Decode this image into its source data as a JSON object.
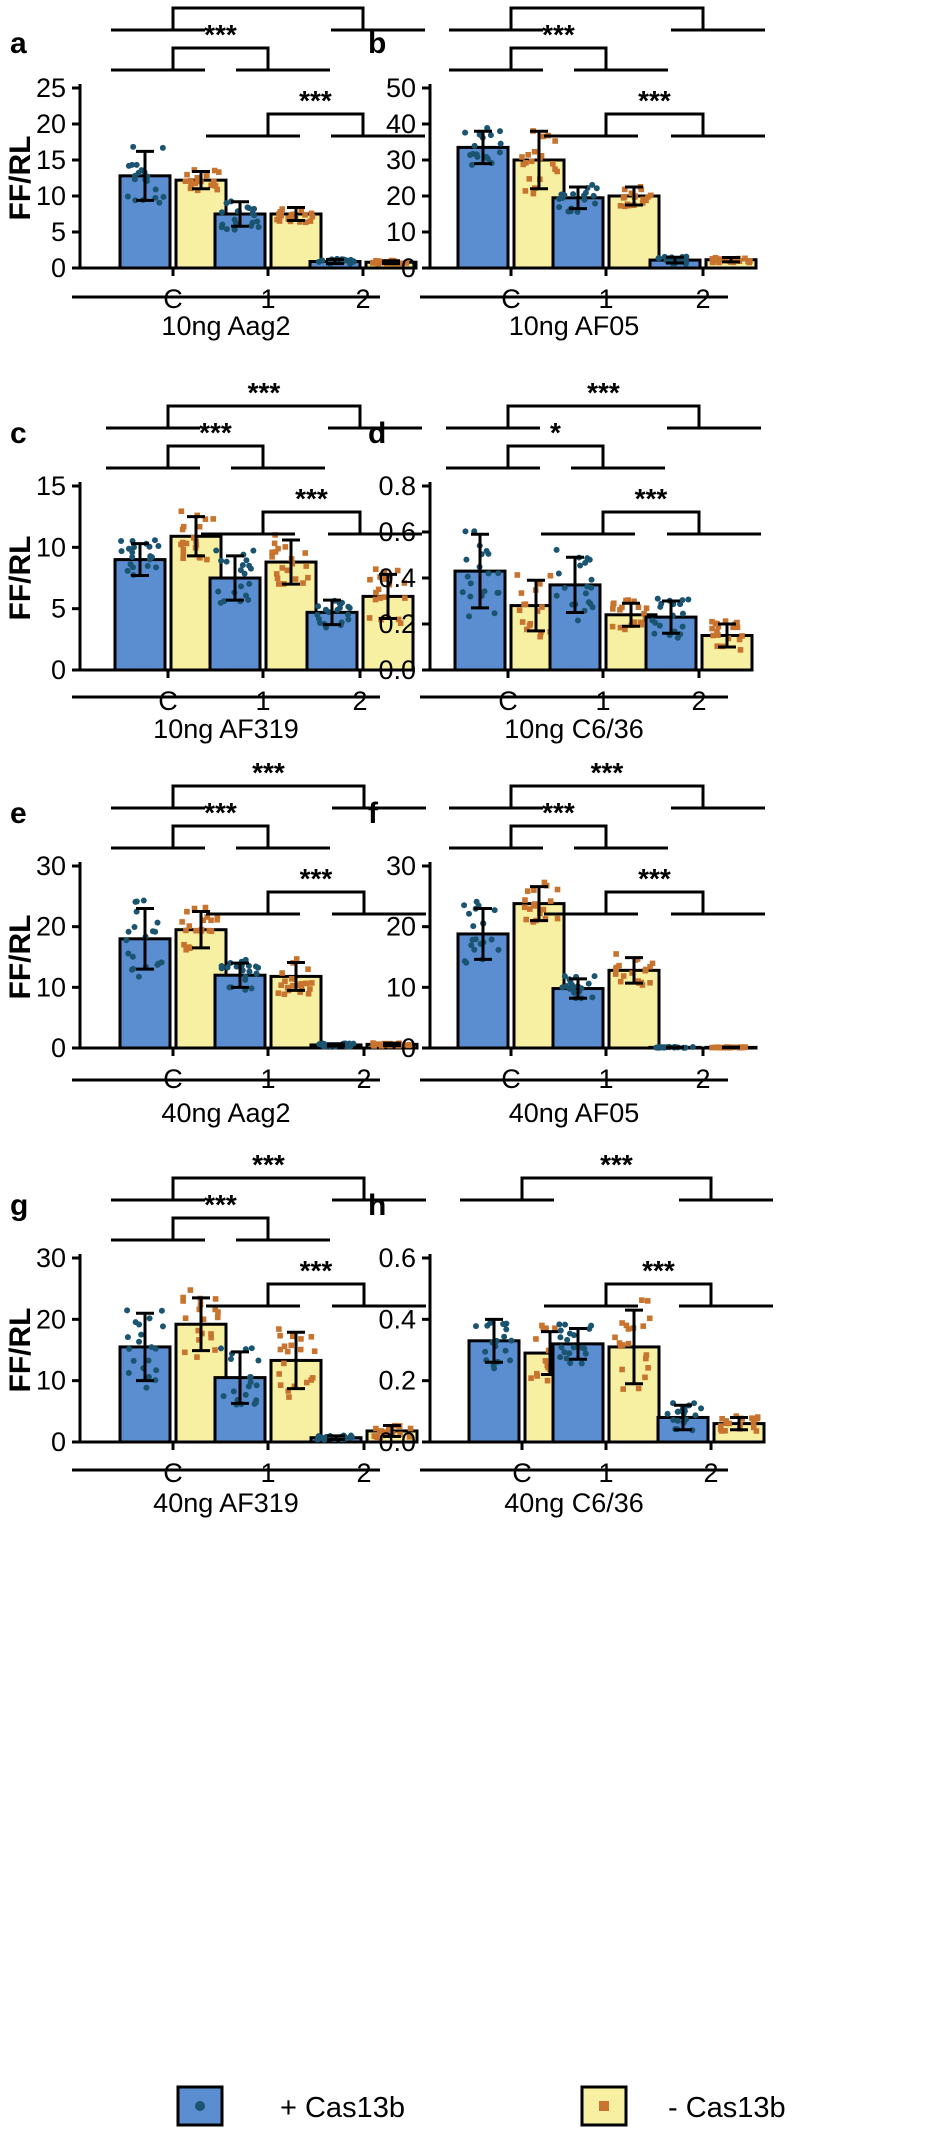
{
  "legend": {
    "cas_plus": "+ Cas13b",
    "cas_minus": "- Cas13b"
  },
  "colors": {
    "cas_plus_bar": "#5b8ed0",
    "cas_minus_bar": "#f7f0a3",
    "cas_plus_dot": "#1a5470",
    "cas_minus_dot": "#c8742e"
  },
  "chart_data": [
    {
      "panel": "a",
      "type": "bar",
      "condition": "10ng Aag2",
      "ylabel": "FF/RL",
      "ylim": [
        0,
        25
      ],
      "yticks": [
        "0",
        "5",
        "10",
        "15",
        "20",
        "25"
      ],
      "categories": [
        "C",
        "1",
        "2"
      ],
      "series": [
        {
          "name": "+ Cas13b",
          "values": [
            12.8,
            7.5,
            0.9
          ],
          "errors": [
            3.4,
            1.7,
            0.3
          ]
        },
        {
          "name": "- Cas13b",
          "values": [
            12.2,
            7.5,
            0.8
          ],
          "errors": [
            1.2,
            0.9,
            0.2
          ]
        }
      ],
      "significance": [
        {
          "label": "***",
          "from": "C",
          "to": "2",
          "level": 1
        },
        {
          "label": "***",
          "from": "C",
          "to": "1",
          "level": 2
        },
        {
          "label": "***",
          "from": "1",
          "to": "2",
          "level": 3
        }
      ]
    },
    {
      "panel": "b",
      "type": "bar",
      "condition": "10ng AF05",
      "ylabel": "",
      "ylim": [
        0,
        50
      ],
      "yticks": [
        "0",
        "10",
        "20",
        "30",
        "40",
        "50"
      ],
      "categories": [
        "C",
        "1",
        "2"
      ],
      "series": [
        {
          "name": "+ Cas13b",
          "values": [
            33.5,
            19.5,
            2.2
          ],
          "errors": [
            4.5,
            3.0,
            0.8
          ]
        },
        {
          "name": "- Cas13b",
          "values": [
            30.0,
            20.0,
            2.3
          ],
          "errors": [
            8.0,
            2.5,
            0.6
          ]
        }
      ],
      "significance": [
        {
          "label": "***",
          "from": "C",
          "to": "2",
          "level": 1
        },
        {
          "label": "***",
          "from": "C",
          "to": "1",
          "level": 2
        },
        {
          "label": "***",
          "from": "1",
          "to": "2",
          "level": 3
        }
      ]
    },
    {
      "panel": "c",
      "type": "bar",
      "condition": "10ng AF319",
      "ylabel": "FF/RL",
      "ylim": [
        0,
        15
      ],
      "yticks": [
        "0",
        "5",
        "10",
        "15"
      ],
      "categories": [
        "C",
        "1",
        "2"
      ],
      "series": [
        {
          "name": "+ Cas13b",
          "values": [
            9.0,
            7.5,
            4.7
          ],
          "errors": [
            1.3,
            1.8,
            1.0
          ]
        },
        {
          "name": "- Cas13b",
          "values": [
            10.9,
            8.8,
            6.0
          ],
          "errors": [
            1.6,
            1.8,
            1.8
          ]
        }
      ],
      "significance": [
        {
          "label": "***",
          "from": "C",
          "to": "2",
          "level": 1
        },
        {
          "label": "***",
          "from": "C",
          "to": "1",
          "level": 2
        },
        {
          "label": "***",
          "from": "1",
          "to": "2",
          "level": 3
        }
      ]
    },
    {
      "panel": "d",
      "type": "bar",
      "condition": "10ng C6/36",
      "ylabel": "",
      "ylim": [
        0,
        0.8
      ],
      "yticks": [
        "0.0",
        "0.2",
        "0.4",
        "0.6",
        "0.8"
      ],
      "categories": [
        "C",
        "1",
        "2"
      ],
      "series": [
        {
          "name": "+ Cas13b",
          "values": [
            0.43,
            0.37,
            0.23
          ],
          "errors": [
            0.16,
            0.12,
            0.07
          ]
        },
        {
          "name": "- Cas13b",
          "values": [
            0.28,
            0.24,
            0.15
          ],
          "errors": [
            0.11,
            0.05,
            0.05
          ]
        }
      ],
      "significance": [
        {
          "label": "***",
          "from": "C",
          "to": "2",
          "level": 1
        },
        {
          "label": "*",
          "from": "C",
          "to": "1",
          "level": 2
        },
        {
          "label": "***",
          "from": "1",
          "to": "2",
          "level": 3
        }
      ]
    },
    {
      "panel": "e",
      "type": "bar",
      "condition": "40ng Aag2",
      "ylabel": "FF/RL",
      "ylim": [
        0,
        30
      ],
      "yticks": [
        "0",
        "10",
        "20",
        "30"
      ],
      "categories": [
        "C",
        "1",
        "2"
      ],
      "series": [
        {
          "name": "+ Cas13b",
          "values": [
            18.0,
            12.0,
            0.5
          ],
          "errors": [
            5.0,
            2.0,
            0.2
          ]
        },
        {
          "name": "- Cas13b",
          "values": [
            19.5,
            11.8,
            0.6
          ],
          "errors": [
            3.0,
            2.3,
            0.2
          ]
        }
      ],
      "significance": [
        {
          "label": "***",
          "from": "C",
          "to": "2",
          "level": 1
        },
        {
          "label": "***",
          "from": "C",
          "to": "1",
          "level": 2
        },
        {
          "label": "***",
          "from": "1",
          "to": "2",
          "level": 3
        }
      ]
    },
    {
      "panel": "f",
      "type": "bar",
      "condition": "40ng AF05",
      "ylabel": "",
      "ylim": [
        0,
        30
      ],
      "yticks": [
        "0",
        "10",
        "20",
        "30"
      ],
      "categories": [
        "C",
        "1",
        "2"
      ],
      "series": [
        {
          "name": "+ Cas13b",
          "values": [
            18.8,
            9.8,
            0.1
          ],
          "errors": [
            4.2,
            1.6,
            0.05
          ]
        },
        {
          "name": "- Cas13b",
          "values": [
            23.8,
            12.8,
            0.1
          ],
          "errors": [
            2.8,
            2.1,
            0.05
          ]
        }
      ],
      "significance": [
        {
          "label": "***",
          "from": "C",
          "to": "2",
          "level": 1
        },
        {
          "label": "***",
          "from": "C",
          "to": "1",
          "level": 2
        },
        {
          "label": "***",
          "from": "1",
          "to": "2",
          "level": 3
        }
      ]
    },
    {
      "panel": "g",
      "type": "bar",
      "condition": "40ng AF319",
      "ylabel": "FF/RL",
      "ylim": [
        0,
        30
      ],
      "yticks": [
        "0",
        "10",
        "20",
        "30"
      ],
      "categories": [
        "C",
        "1",
        "2"
      ],
      "series": [
        {
          "name": "+ Cas13b",
          "values": [
            15.5,
            10.5,
            0.7
          ],
          "errors": [
            5.5,
            4.2,
            0.3
          ]
        },
        {
          "name": "- Cas13b",
          "values": [
            19.2,
            13.3,
            1.8
          ],
          "errors": [
            4.3,
            4.6,
            0.9
          ]
        }
      ],
      "significance": [
        {
          "label": "***",
          "from": "C",
          "to": "2",
          "level": 1
        },
        {
          "label": "***",
          "from": "C",
          "to": "1",
          "level": 2
        },
        {
          "label": "***",
          "from": "1",
          "to": "2",
          "level": 3
        }
      ]
    },
    {
      "panel": "h",
      "type": "bar",
      "condition": "40ng C6/36",
      "ylabel": "",
      "ylim": [
        0,
        0.6
      ],
      "yticks": [
        "0.0",
        "0.2",
        "0.4",
        "0.6"
      ],
      "categories": [
        "C",
        "1",
        "2"
      ],
      "series": [
        {
          "name": "+ Cas13b",
          "values": [
            0.33,
            0.32,
            0.08
          ],
          "errors": [
            0.07,
            0.05,
            0.04
          ]
        },
        {
          "name": "- Cas13b",
          "values": [
            0.29,
            0.31,
            0.06
          ],
          "errors": [
            0.07,
            0.12,
            0.02
          ]
        }
      ],
      "significance": [
        {
          "label": "***",
          "from": "C",
          "to": "2",
          "level": 1
        },
        {
          "label": "***",
          "from": "1",
          "to": "2",
          "level": 3
        }
      ]
    }
  ]
}
